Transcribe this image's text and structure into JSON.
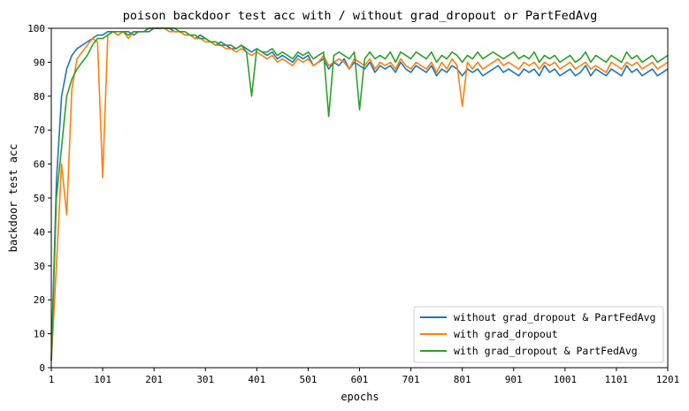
{
  "chart_data": {
    "type": "line",
    "title": "poison backdoor test acc with / without grad_dropout or PartFedAvg",
    "xlabel": "epochs",
    "ylabel": "backdoor test acc",
    "xlim": [
      1,
      1201
    ],
    "ylim": [
      0,
      100
    ],
    "x_ticks": [
      "1",
      "101",
      "201",
      "301",
      "401",
      "501",
      "601",
      "701",
      "801",
      "901",
      "1001",
      "1101",
      "1201"
    ],
    "y_ticks": [
      "0",
      "10",
      "20",
      "30",
      "40",
      "50",
      "60",
      "70",
      "80",
      "90",
      "100"
    ],
    "grid": false,
    "legend_position": "lower-right",
    "x": [
      1,
      11,
      21,
      31,
      41,
      51,
      61,
      71,
      81,
      91,
      101,
      111,
      121,
      131,
      141,
      151,
      161,
      171,
      181,
      191,
      201,
      211,
      221,
      231,
      241,
      251,
      261,
      271,
      281,
      291,
      301,
      311,
      321,
      331,
      341,
      351,
      361,
      371,
      381,
      391,
      401,
      411,
      421,
      431,
      441,
      451,
      461,
      471,
      481,
      491,
      501,
      511,
      521,
      531,
      541,
      551,
      561,
      571,
      581,
      591,
      601,
      611,
      621,
      631,
      641,
      651,
      661,
      671,
      681,
      691,
      701,
      711,
      721,
      731,
      741,
      751,
      761,
      771,
      781,
      791,
      801,
      811,
      821,
      831,
      841,
      851,
      861,
      871,
      881,
      891,
      901,
      911,
      921,
      931,
      941,
      951,
      961,
      971,
      981,
      991,
      1001,
      1011,
      1021,
      1031,
      1041,
      1051,
      1061,
      1071,
      1081,
      1091,
      1101,
      1111,
      1121,
      1131,
      1141,
      1151,
      1161,
      1171,
      1181,
      1191,
      1201
    ],
    "series": [
      {
        "name": "without grad_dropout & PartFedAvg",
        "color": "#1f77b4",
        "values": [
          2,
          55,
          80,
          88,
          92,
          94,
          95,
          96,
          97,
          98,
          98,
          99,
          99,
          98,
          99,
          99,
          98,
          99,
          99,
          99,
          100,
          100,
          100,
          100,
          99,
          99,
          98,
          98,
          97,
          98,
          97,
          96,
          95,
          96,
          95,
          94,
          94,
          95,
          94,
          93,
          94,
          93,
          92,
          93,
          91,
          92,
          91,
          90,
          92,
          91,
          92,
          89,
          90,
          91,
          88,
          90,
          89,
          91,
          88,
          90,
          89,
          88,
          90,
          87,
          89,
          88,
          89,
          87,
          90,
          88,
          87,
          89,
          88,
          87,
          89,
          86,
          88,
          87,
          89,
          88,
          86,
          88,
          87,
          88,
          86,
          87,
          88,
          89,
          87,
          88,
          87,
          86,
          88,
          87,
          88,
          86,
          89,
          87,
          88,
          86,
          87,
          88,
          86,
          87,
          89,
          86,
          88,
          87,
          86,
          88,
          87,
          86,
          89,
          87,
          88,
          86,
          87,
          88,
          86,
          87,
          88
        ]
      },
      {
        "name": "with grad_dropout",
        "color": "#ff7f0e",
        "values": [
          2,
          30,
          60,
          45,
          82,
          91,
          93,
          95,
          97,
          96,
          56,
          98,
          99,
          98,
          99,
          97,
          99,
          99,
          99,
          100,
          100,
          100,
          100,
          99,
          99,
          99,
          98,
          98,
          97,
          97,
          96,
          96,
          95,
          95,
          94,
          94,
          93,
          94,
          93,
          92,
          93,
          92,
          91,
          92,
          90,
          91,
          90,
          89,
          91,
          90,
          91,
          89,
          90,
          92,
          89,
          90,
          91,
          90,
          88,
          91,
          90,
          89,
          91,
          88,
          90,
          89,
          90,
          88,
          91,
          89,
          88,
          90,
          89,
          88,
          90,
          87,
          90,
          88,
          91,
          89,
          77,
          90,
          88,
          90,
          88,
          89,
          90,
          91,
          89,
          90,
          89,
          88,
          90,
          89,
          90,
          88,
          90,
          89,
          90,
          88,
          89,
          90,
          88,
          89,
          90,
          88,
          89,
          88,
          87,
          90,
          89,
          88,
          90,
          89,
          90,
          88,
          89,
          90,
          88,
          89,
          90
        ]
      },
      {
        "name": "with grad_dropout & PartFedAvg",
        "color": "#2ca02c",
        "values": [
          2,
          50,
          65,
          80,
          85,
          88,
          90,
          92,
          95,
          97,
          97,
          98,
          99,
          99,
          99,
          98,
          99,
          99,
          99,
          100,
          100,
          100,
          100,
          100,
          100,
          99,
          99,
          98,
          98,
          97,
          97,
          96,
          96,
          95,
          95,
          95,
          94,
          95,
          93,
          80,
          94,
          93,
          93,
          94,
          92,
          93,
          92,
          91,
          93,
          92,
          93,
          91,
          92,
          93,
          74,
          92,
          93,
          92,
          91,
          93,
          76,
          91,
          93,
          91,
          92,
          91,
          93,
          90,
          93,
          92,
          91,
          93,
          92,
          91,
          93,
          90,
          92,
          91,
          93,
          92,
          90,
          92,
          91,
          93,
          91,
          92,
          93,
          92,
          91,
          92,
          93,
          91,
          92,
          91,
          93,
          90,
          92,
          91,
          92,
          90,
          91,
          92,
          90,
          91,
          93,
          90,
          92,
          91,
          90,
          92,
          91,
          90,
          93,
          91,
          92,
          90,
          91,
          92,
          90,
          91,
          92
        ]
      }
    ]
  }
}
